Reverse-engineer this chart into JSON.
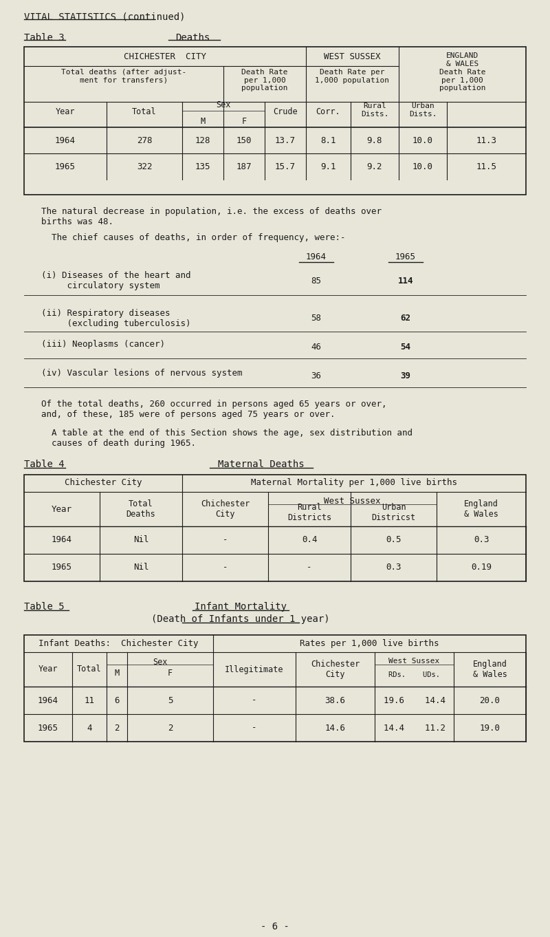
{
  "bg_color": "#e8e6d9",
  "text_color": "#1a1a1a",
  "title": "VITAL STATISTICS (continued)",
  "table3_label": "Table 3",
  "table3_title": "Deaths",
  "table3_rows": [
    [
      "1964",
      "278",
      "128",
      "150",
      "13.7",
      "8.1",
      "9.8",
      "10.0",
      "11.3"
    ],
    [
      "1965",
      "322",
      "135",
      "187",
      "15.7",
      "9.1",
      "9.2",
      "10.0",
      "11.5"
    ]
  ],
  "para1": "The natural decrease in population, i.e. the excess of deaths over\nbirths was 48.",
  "para2": "The chief causes of deaths, in order of frequency, were:-",
  "cause_texts": [
    "(i) Diseases of the heart and\n     circulatory system",
    "(ii) Respiratory diseases\n     (excluding tuberculosis)",
    "(iii) Neoplasms (cancer)",
    "(iv) Vascular lesions of nervous system"
  ],
  "vals_1964": [
    "85",
    "58",
    "46",
    "36"
  ],
  "vals_1965": [
    "114",
    "62",
    "54",
    "39"
  ],
  "para3": "Of the total deaths, 260 occurred in persons aged 65 years or over,\nand, of these, 185 were of persons aged 75 years or over.",
  "para4": "A table at the end of this Section shows the age, sex distribution and\ncauses of death during 1965.",
  "table4_label": "Table 4",
  "table4_title": "Maternal Deaths",
  "table4_rows": [
    [
      "1964",
      "Nil",
      "-",
      "0.4",
      "0.5",
      "0.3"
    ],
    [
      "1965",
      "Nil",
      "-",
      "-",
      "0.3",
      "0.19"
    ]
  ],
  "table5_label": "Table 5",
  "table5_title": "Infant Mortality",
  "table5_subtitle": "(Death of Infants under 1 year)",
  "table5_rows": [
    [
      "1964",
      "11",
      "6",
      "5",
      "-",
      "38.6",
      "19.6    14.4",
      "20.0"
    ],
    [
      "1965",
      "4",
      "2",
      "2",
      "-",
      "14.6",
      "14.4    11.2",
      "19.0"
    ]
  ],
  "page_number": "- 6 -"
}
